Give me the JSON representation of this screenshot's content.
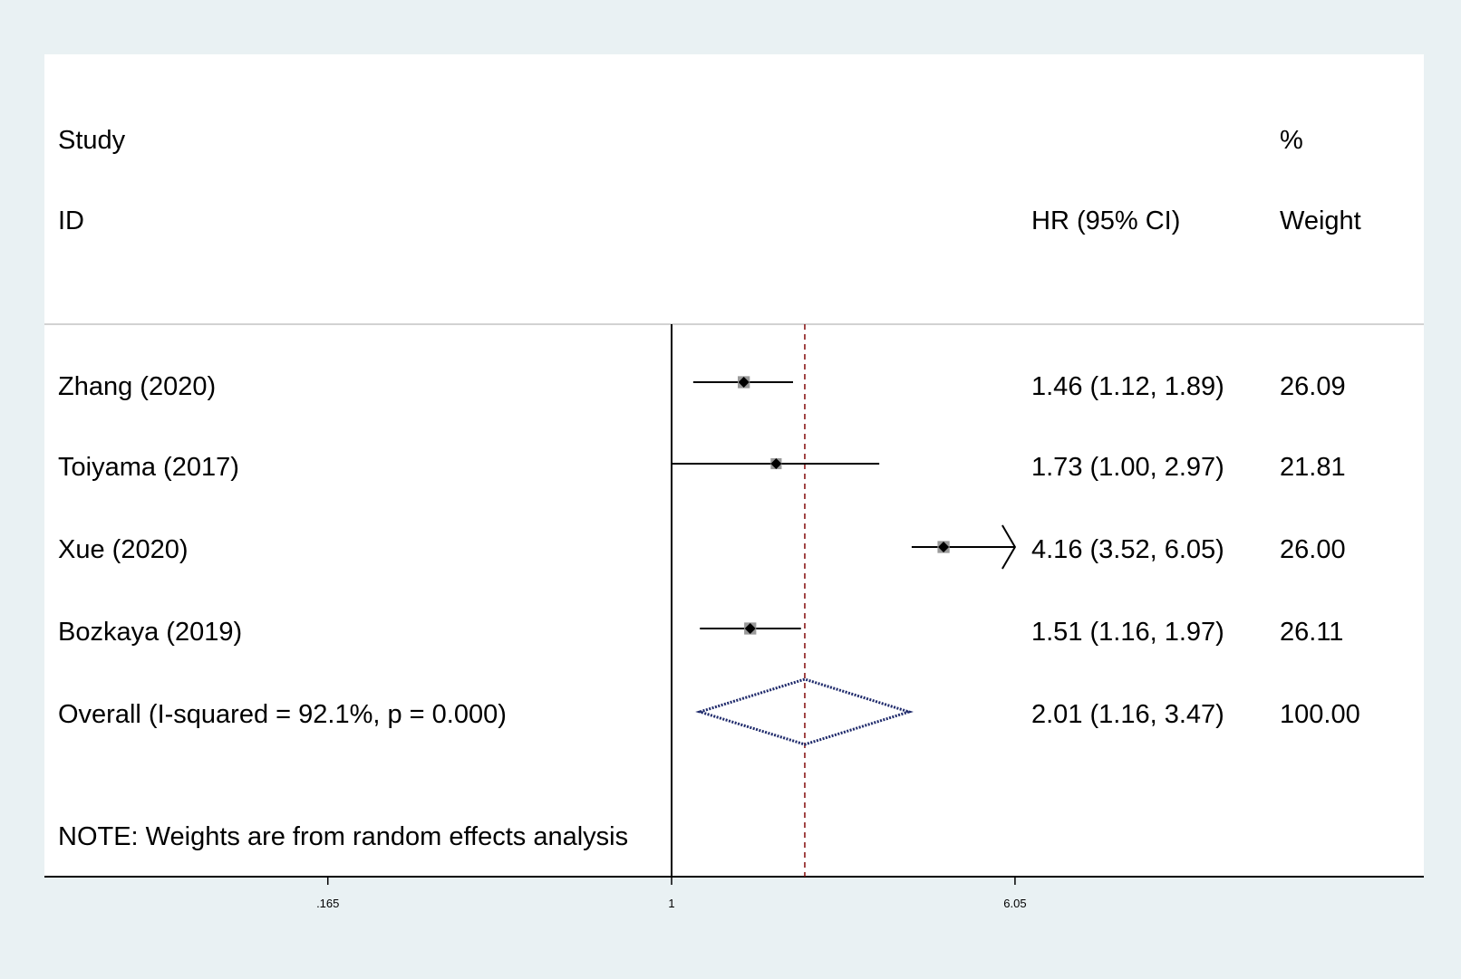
{
  "chart_data": {
    "type": "forest",
    "scale": "log",
    "header": {
      "study_line1": "Study",
      "study_line2": "ID",
      "effect_label": "HR (95% CI)",
      "weight_line1": "%",
      "weight_line2": "Weight"
    },
    "studies": [
      {
        "label": "Zhang (2020)",
        "hr": 1.46,
        "lo": 1.12,
        "hi": 1.89,
        "ci_text": "1.46 (1.12, 1.89)",
        "weight_text": "26.09",
        "weight": 26.09
      },
      {
        "label": "Toiyama (2017)",
        "hr": 1.73,
        "lo": 1.0,
        "hi": 2.97,
        "ci_text": "1.73 (1.00, 2.97)",
        "weight_text": "21.81",
        "weight": 21.81
      },
      {
        "label": "Xue (2020)",
        "hr": 4.16,
        "lo": 3.52,
        "hi": 6.05,
        "ci_text": "4.16 (3.52, 6.05)",
        "weight_text": "26.00",
        "weight": 26.0
      },
      {
        "label": "Bozkaya (2019)",
        "hr": 1.51,
        "lo": 1.16,
        "hi": 1.97,
        "ci_text": "1.51 (1.16, 1.97)",
        "weight_text": "26.11",
        "weight": 26.11
      }
    ],
    "overall": {
      "label": "Overall  (I-squared = 92.1%, p = 0.000)",
      "hr": 2.01,
      "lo": 1.16,
      "hi": 3.47,
      "ci_text": "2.01 (1.16, 3.47)",
      "weight_text": "100.00"
    },
    "note": "NOTE: Weights are from random effects analysis",
    "x_ticks": [
      {
        "value": 0.165,
        "label": ".165"
      },
      {
        "value": 1,
        "label": "1"
      },
      {
        "value": 6.05,
        "label": "6.05"
      }
    ],
    "xlim": [
      0.165,
      6.05
    ],
    "null_line": 1,
    "colors": {
      "background": "#e9f1f3",
      "plot_background": "#ffffff",
      "diamond": "#1f2a6b",
      "overall_line": "#8b1a1a",
      "marker": "#000000",
      "weight_box": "#9a9a9a"
    }
  }
}
